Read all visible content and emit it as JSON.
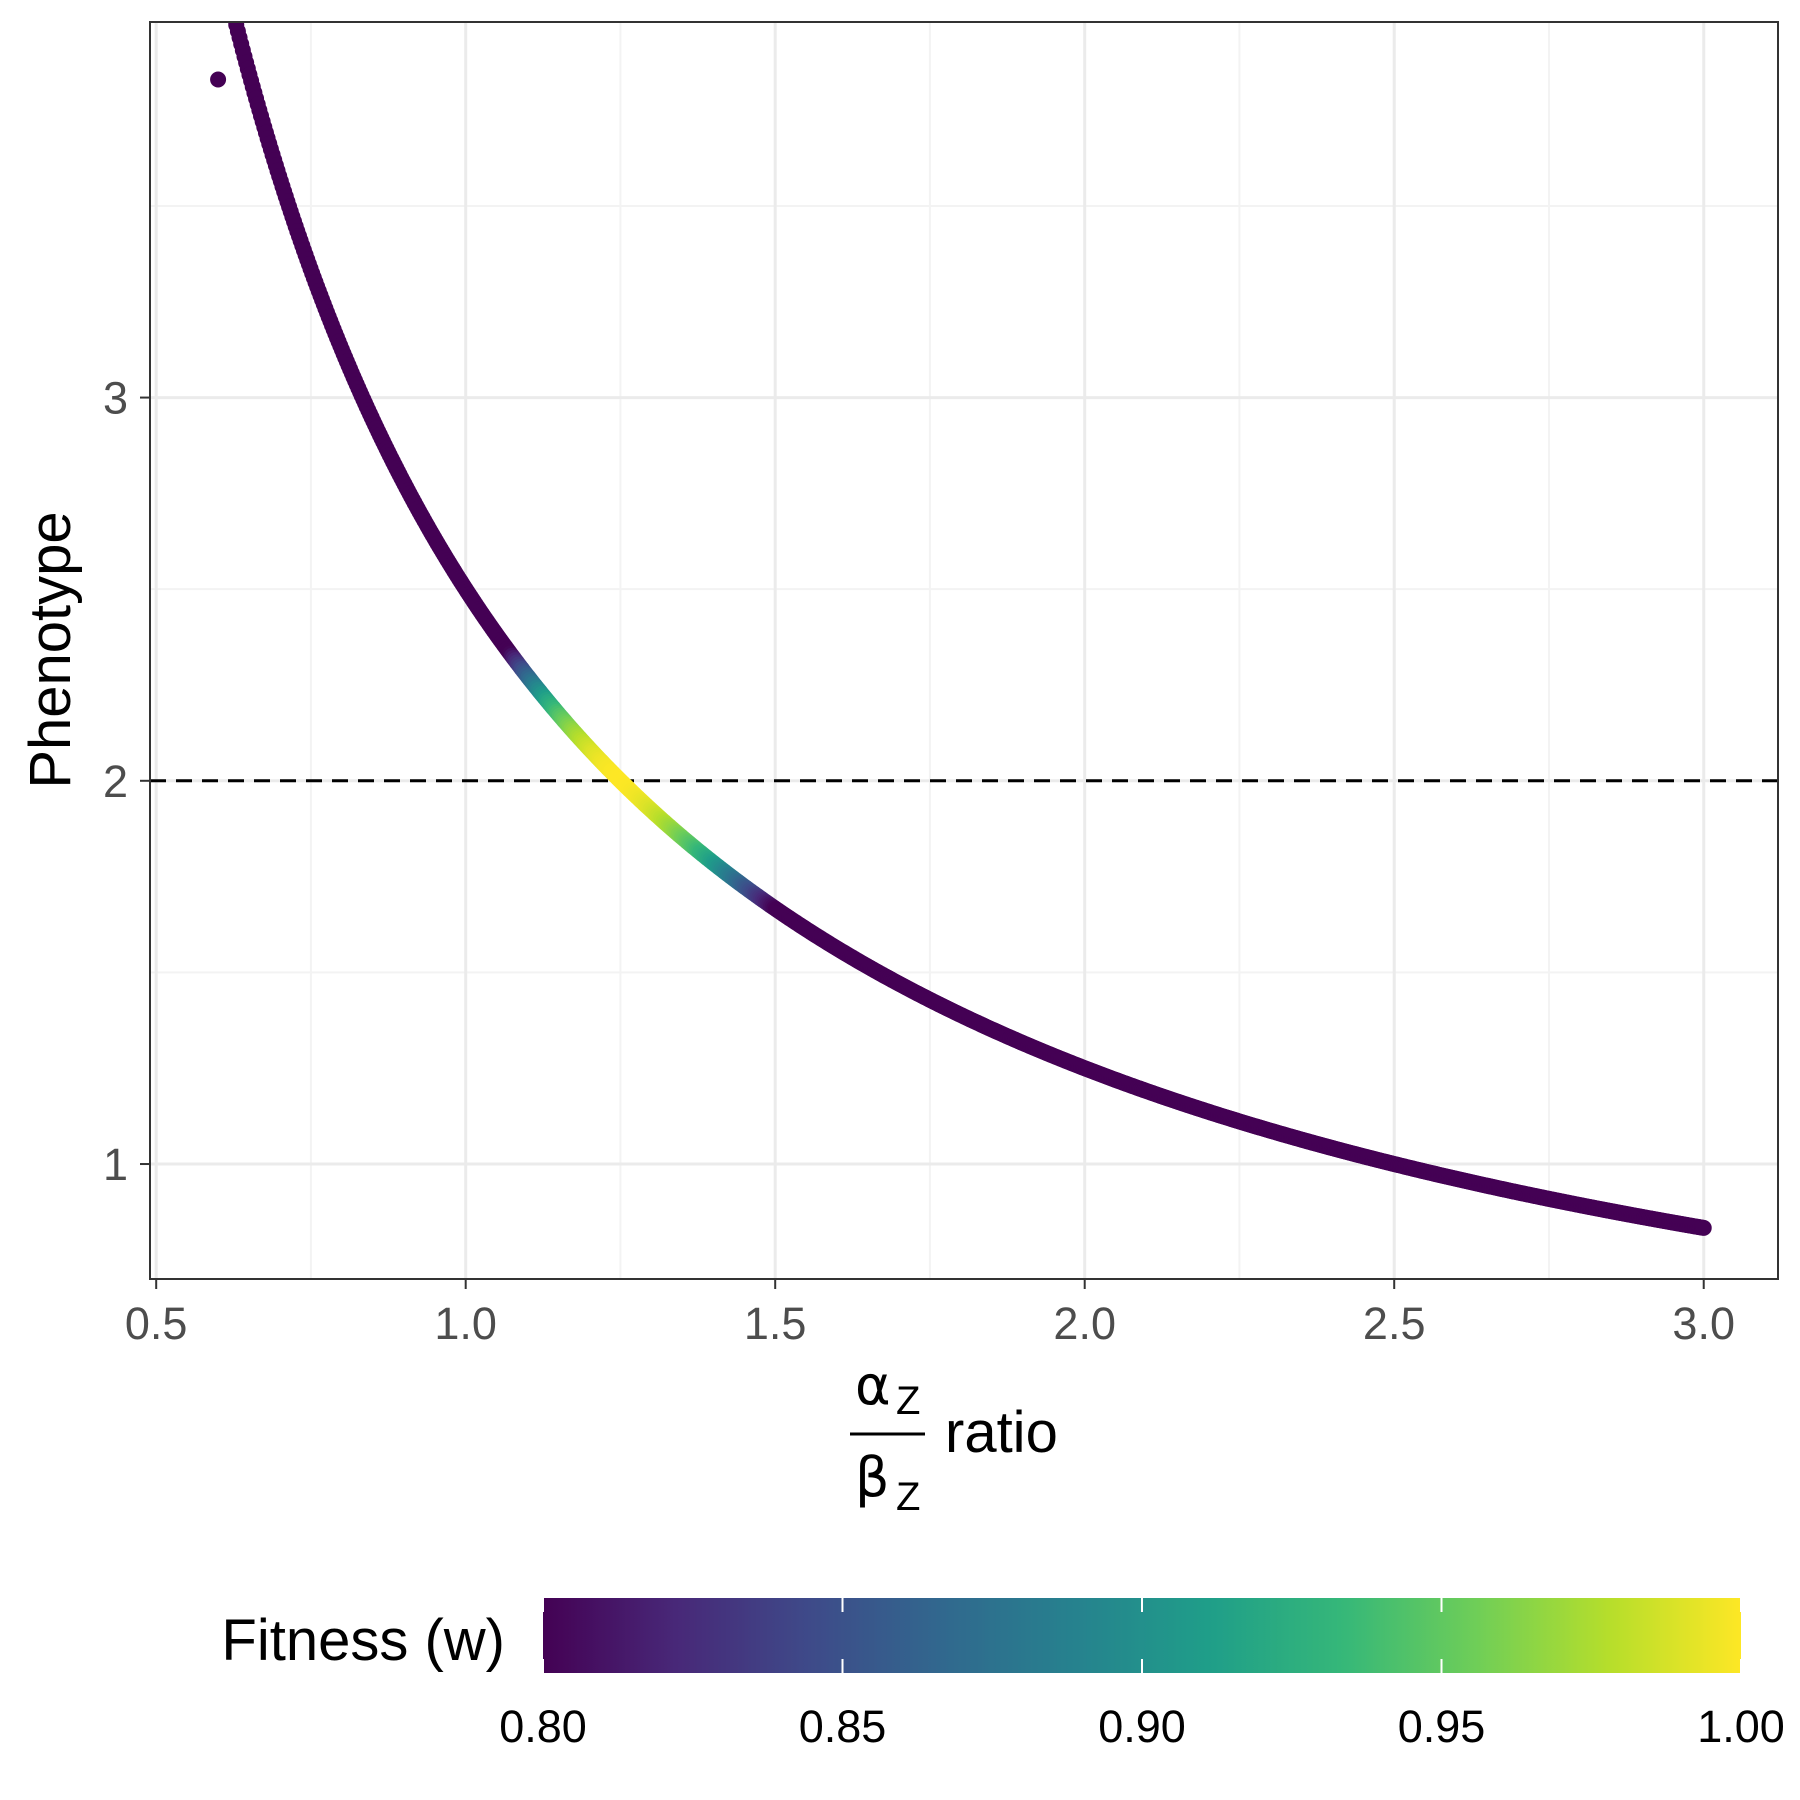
{
  "chart_data": {
    "type": "scatter",
    "title": "",
    "xlabel": {
      "numerator": "α",
      "numerator_sub": "Z",
      "denominator": "β",
      "denominator_sub": "Z",
      "suffix": "ratio"
    },
    "ylabel": "Phenotype",
    "xlim": [
      0.49,
      3.12
    ],
    "ylim": [
      0.7,
      3.98
    ],
    "x_ticks": [
      "0.5",
      "1.0",
      "1.5",
      "2.0",
      "2.5",
      "3.0"
    ],
    "y_ticks": [
      "1",
      "2",
      "3"
    ],
    "grid": true,
    "reference_line": {
      "y": 2,
      "style": "dashed"
    },
    "curve": {
      "formula": "Phenotype = 2.5 / ratio",
      "optimum": 2,
      "x_start": 0.6,
      "x_end": 3.0
    },
    "outlier_point": {
      "x": 0.6,
      "y": 3.83
    },
    "legend": {
      "title": "Fitness (w)",
      "position": "bottom",
      "range": [
        0.8,
        1.0
      ],
      "tick_labels": [
        "0.80",
        "0.85",
        "0.90",
        "0.95",
        "1.00"
      ],
      "colormap": "viridis"
    }
  },
  "colors": {
    "panel_border": "#333333",
    "grid_major": "#ebebeb",
    "grid_minor": "#f3f3f3",
    "viridis_dark": "#440154",
    "viridis_mid": "#21908C",
    "viridis_light": "#FDE725"
  }
}
